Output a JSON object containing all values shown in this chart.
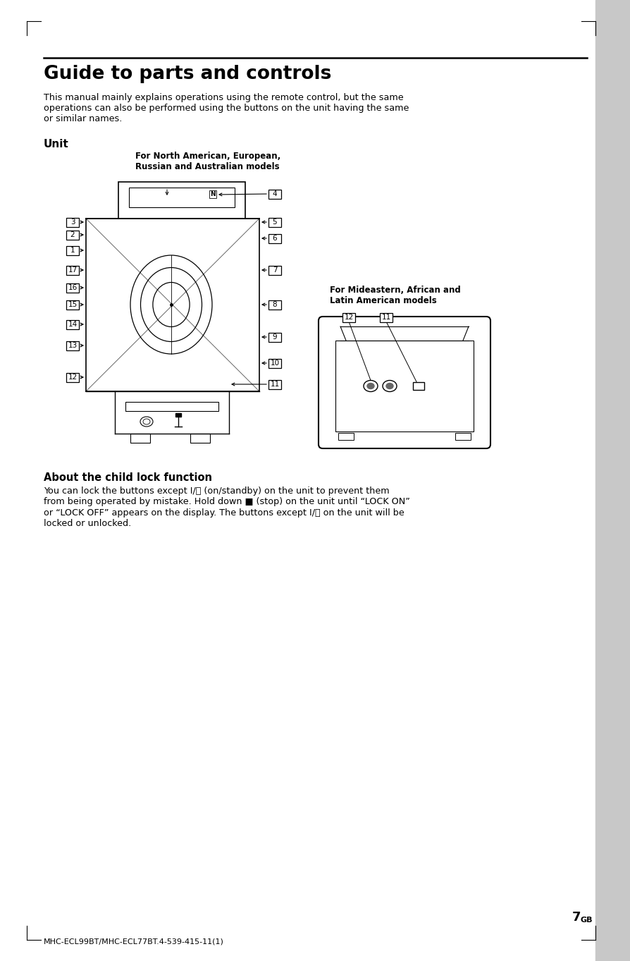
{
  "page_title": "Guide to parts and controls",
  "page_number": "7",
  "page_number_super": "GB",
  "footer_text": "MHC-ECL99BT/MHC-ECL77BT.4-539-415-11(1)",
  "intro_line1": "This manual mainly explains operations using the remote control, but the same",
  "intro_line2": "operations can also be performed using the buttons on the unit having the same",
  "intro_line3": "or similar names.",
  "unit_label": "Unit",
  "north_label_line1": "For North American, European,",
  "north_label_line2": "Russian and Australian models",
  "mid_label_line1": "For Mideastern, African and",
  "mid_label_line2": "Latin American models",
  "child_lock_title": "About the child lock function",
  "child_lock_line1": "You can lock the buttons except I/⏽ (on/standby) on the unit to prevent them",
  "child_lock_line2": "from being operated by mistake. Hold down ■ (stop) on the unit until “LOCK ON”",
  "child_lock_line3": "or “LOCK OFF” appears on the display. The buttons except I/⏽ on the unit will be",
  "child_lock_line4": "locked or unlocked.",
  "bg_color": "#ffffff",
  "sidebar_color": "#c8c8c8"
}
